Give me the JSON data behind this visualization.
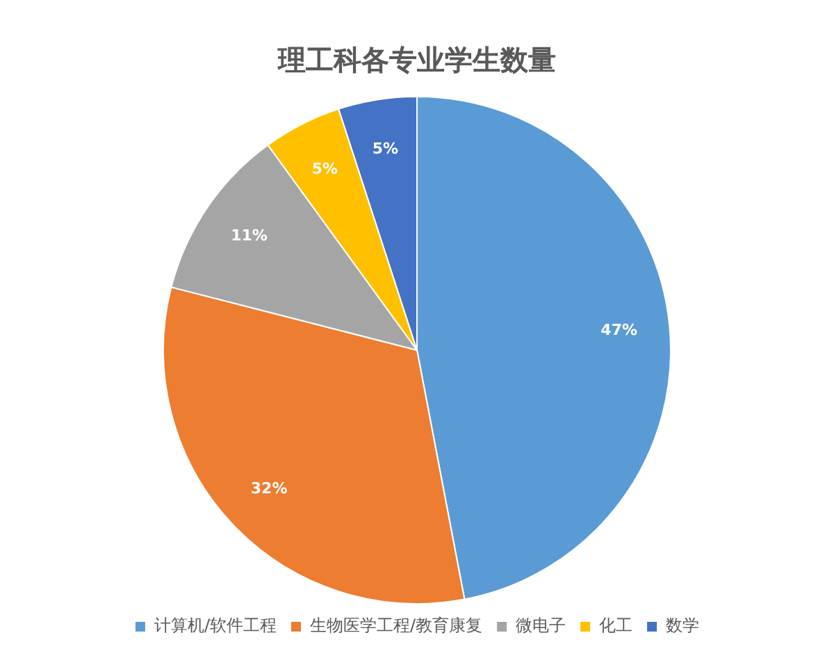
{
  "chart_data": {
    "type": "pie",
    "title": "理工科各专业学生数量",
    "categories": [
      "计算机/软件工程",
      "生物医学工程/教育康复",
      "微电子",
      "化工",
      "数学"
    ],
    "values": [
      47,
      32,
      11,
      5,
      5
    ],
    "value_labels": [
      "47%",
      "32%",
      "11%",
      "5%",
      "5%"
    ],
    "colors": [
      "#5b9bd5",
      "#ed7d31",
      "#a5a5a5",
      "#ffc000",
      "#4472c4"
    ],
    "legend": "bottom"
  }
}
